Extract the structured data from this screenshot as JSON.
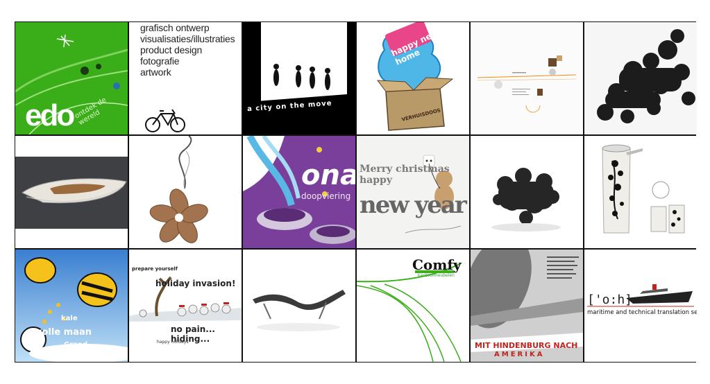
{
  "menu": {
    "items": [
      {
        "label": "grafisch ontwerp"
      },
      {
        "label": "visualisaties/illustraties"
      },
      {
        "label": "product design"
      },
      {
        "label": "fotografie"
      },
      {
        "label": "artwork"
      }
    ]
  },
  "tiles": {
    "edo": {
      "logo": "edo",
      "tagline": "ontdek de wereld"
    },
    "city": {
      "caption": "a city on the move"
    },
    "new_home": {
      "banner": "happy new home",
      "box_label": "VERHUISDOOS"
    },
    "ona": {
      "word": "ona",
      "sub": "doopviering"
    },
    "newyear": {
      "line1": "Merry christmas happy",
      "line2": "new year"
    },
    "fullmoon": {
      "line1": "kale",
      "line2": "volle maan",
      "line3": "Grand"
    },
    "invasion": {
      "line1": "prepare yourself",
      "line2": "holiday invasion!",
      "line3": "no pain... hiding...",
      "line4": "happy holidays"
    },
    "comfy": {
      "brand": "Comfy",
      "sub": "kantoormeubelen"
    },
    "hindenburg": {
      "line1": "MIT HINDENBURG NACH",
      "line2": "AMERIKA"
    },
    "oh": {
      "logo": "['o:h]",
      "service": "maritime and technical translation service"
    }
  },
  "colors": {
    "edo_green": "#39b016",
    "ona_purple": "#7a3f9a",
    "hindenburg_red": "#c0241c",
    "grid_line": "#111111"
  }
}
